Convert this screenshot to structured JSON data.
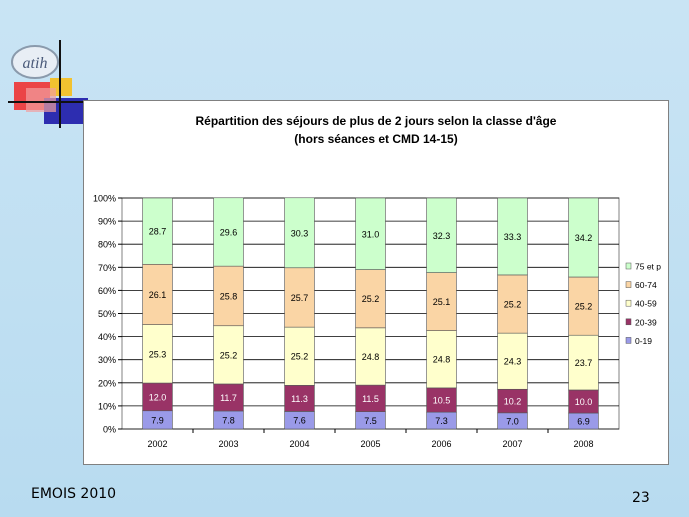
{
  "slide": {
    "footer_left": "EMOIS 2010",
    "page_number": "23",
    "logo_text": "atih"
  },
  "colors": {
    "bg": "#c0dff2",
    "c_0_19": "#9a9ae8",
    "c_20_39": "#993366",
    "c_40_59": "#ffffcc",
    "c_60_74": "#fad5a5",
    "c_75": "#ccffcc"
  },
  "chart_data": {
    "type": "bar",
    "stacked": true,
    "title": "Répartition des séjours de plus de 2 jours selon la classe d'âge",
    "subtitle": "(hors séances et CMD 14-15)",
    "xlabel": "",
    "ylabel": "",
    "ylim": [
      0,
      100
    ],
    "y_ticks": [
      "0%",
      "10%",
      "20%",
      "30%",
      "40%",
      "50%",
      "60%",
      "70%",
      "80%",
      "90%",
      "100%"
    ],
    "categories": [
      "2002",
      "2003",
      "2004",
      "2005",
      "2006",
      "2007",
      "2008"
    ],
    "legend_position": "right",
    "series": [
      {
        "name": "0-19",
        "color": "#9a9ae8",
        "labels": [
          "7.9",
          "7.8",
          "7.6",
          "7.5",
          "7.3",
          "7.0",
          "6.9"
        ],
        "values": [
          7.9,
          7.8,
          7.6,
          7.5,
          7.3,
          7.0,
          6.9
        ]
      },
      {
        "name": "20-39",
        "color": "#993366",
        "labels": [
          "12.0",
          "11.7",
          "11.3",
          "11.5",
          "10.5",
          "10.2",
          "10.0"
        ],
        "values": [
          12.0,
          11.7,
          11.3,
          11.5,
          10.5,
          10.2,
          10.0
        ]
      },
      {
        "name": "40-59",
        "color": "#ffffcc",
        "labels": [
          "25.3",
          "25.2",
          "25.2",
          "24.8",
          "24.8",
          "24.3",
          "23.7"
        ],
        "values": [
          25.3,
          25.2,
          25.2,
          24.8,
          24.8,
          24.3,
          23.7
        ]
      },
      {
        "name": "60-74",
        "color": "#fad5a5",
        "labels": [
          "26.1",
          "25.8",
          "25.7",
          "25.2",
          "25.1",
          "25.2",
          "25.2"
        ],
        "values": [
          26.1,
          25.8,
          25.7,
          25.2,
          25.1,
          25.2,
          25.2
        ]
      },
      {
        "name": "75 et p",
        "color": "#ccffcc",
        "labels": [
          "28.7",
          "29.6",
          "30.3",
          "31.0",
          "32.3",
          "33.3",
          "34.2"
        ],
        "values": [
          28.7,
          29.6,
          30.3,
          31.0,
          32.3,
          33.3,
          34.2
        ]
      }
    ]
  }
}
